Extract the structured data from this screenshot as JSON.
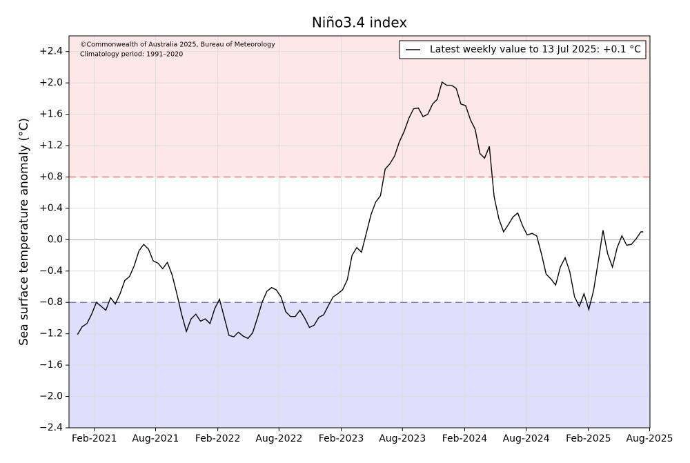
{
  "chart_data": {
    "type": "line",
    "title": "Niño3.4 index",
    "y_label": "Sea surface temperature anomaly (°C)",
    "annotations": [
      "©Commonwealth of Australia 2025, Bureau of Meteorology",
      "Climatology period: 1991–2020"
    ],
    "legend": "upper right",
    "grid": true,
    "thresholds": [
      {
        "value": 0.8,
        "color": "#e86060",
        "fill": "#fde7e7"
      },
      {
        "value": -0.8,
        "color": "#6666bb",
        "fill": "#dfdffb"
      }
    ],
    "ylim": [
      -2.4,
      2.6
    ],
    "yticks": [
      {
        "value": -2.4,
        "label": "−2.4"
      },
      {
        "value": -2.0,
        "label": "−2.0"
      },
      {
        "value": -1.6,
        "label": "−1.6"
      },
      {
        "value": -1.2,
        "label": "−1.2"
      },
      {
        "value": -0.8,
        "label": "−0.8"
      },
      {
        "value": -0.4,
        "label": "−0.4"
      },
      {
        "value": 0,
        "label": "0.0"
      },
      {
        "value": 0.4,
        "label": "+0.4"
      },
      {
        "value": 0.8,
        "label": "+0.8"
      },
      {
        "value": 1.2,
        "label": "+1.2"
      },
      {
        "value": 1.6,
        "label": "+1.6"
      },
      {
        "value": 2.0,
        "label": "+2.0"
      },
      {
        "value": 2.4,
        "label": "+2.4"
      }
    ],
    "xlim": [
      "2020-11-18",
      "2025-08-02"
    ],
    "xticks": [
      {
        "value": "2021-02-01",
        "label": "Feb-2021"
      },
      {
        "value": "2021-08-01",
        "label": "Aug-2021"
      },
      {
        "value": "2022-02-01",
        "label": "Feb-2022"
      },
      {
        "value": "2022-08-01",
        "label": "Aug-2022"
      },
      {
        "value": "2023-02-01",
        "label": "Feb-2023"
      },
      {
        "value": "2023-08-01",
        "label": "Aug-2023"
      },
      {
        "value": "2024-02-01",
        "label": "Feb-2024"
      },
      {
        "value": "2024-08-01",
        "label": "Aug-2024"
      },
      {
        "value": "2025-02-01",
        "label": "Feb-2025"
      },
      {
        "value": "2025-08-01",
        "label": "Aug-2025"
      }
    ],
    "x": [
      "2020-12-13",
      "2020-12-27",
      "2021-01-10",
      "2021-01-24",
      "2021-02-07",
      "2021-02-21",
      "2021-03-07",
      "2021-03-21",
      "2021-04-04",
      "2021-04-18",
      "2021-05-02",
      "2021-05-16",
      "2021-05-30",
      "2021-06-13",
      "2021-06-27",
      "2021-07-11",
      "2021-07-25",
      "2021-08-08",
      "2021-08-22",
      "2021-09-05",
      "2021-09-19",
      "2021-10-03",
      "2021-10-17",
      "2021-10-31",
      "2021-11-14",
      "2021-11-28",
      "2021-12-12",
      "2021-12-26",
      "2022-01-09",
      "2022-01-23",
      "2022-02-06",
      "2022-02-20",
      "2022-03-06",
      "2022-03-20",
      "2022-04-03",
      "2022-04-17",
      "2022-05-01",
      "2022-05-15",
      "2022-05-29",
      "2022-06-12",
      "2022-06-26",
      "2022-07-10",
      "2022-07-24",
      "2022-08-07",
      "2022-08-21",
      "2022-09-04",
      "2022-09-18",
      "2022-10-02",
      "2022-10-16",
      "2022-10-30",
      "2022-11-13",
      "2022-11-27",
      "2022-12-11",
      "2022-12-25",
      "2023-01-08",
      "2023-01-22",
      "2023-02-05",
      "2023-02-19",
      "2023-03-05",
      "2023-03-19",
      "2023-04-02",
      "2023-04-16",
      "2023-04-30",
      "2023-05-14",
      "2023-05-28",
      "2023-06-11",
      "2023-06-25",
      "2023-07-09",
      "2023-07-23",
      "2023-08-06",
      "2023-08-20",
      "2023-09-03",
      "2023-09-17",
      "2023-10-01",
      "2023-10-15",
      "2023-10-29",
      "2023-11-12",
      "2023-11-26",
      "2023-12-10",
      "2023-12-24",
      "2024-01-07",
      "2024-01-21",
      "2024-02-04",
      "2024-02-18",
      "2024-03-03",
      "2024-03-17",
      "2024-03-31",
      "2024-04-14",
      "2024-04-28",
      "2024-05-12",
      "2024-05-26",
      "2024-06-09",
      "2024-06-23",
      "2024-07-07",
      "2024-07-21",
      "2024-08-04",
      "2024-08-18",
      "2024-09-01",
      "2024-09-15",
      "2024-09-29",
      "2024-10-13",
      "2024-10-27",
      "2024-11-10",
      "2024-11-24",
      "2024-12-08",
      "2024-12-22",
      "2025-01-05",
      "2025-01-19",
      "2025-02-02",
      "2025-02-16",
      "2025-03-02",
      "2025-03-16",
      "2025-03-30",
      "2025-04-13",
      "2025-04-27",
      "2025-05-11",
      "2025-05-25",
      "2025-06-08",
      "2025-06-22",
      "2025-07-06",
      "2025-07-13"
    ],
    "series": [
      {
        "name": "Latest weekly value to 13 Jul 2025: +0.1 °C",
        "color": "#000000",
        "values": [
          -1.21,
          -1.11,
          -1.07,
          -0.95,
          -0.8,
          -0.85,
          -0.9,
          -0.74,
          -0.82,
          -0.69,
          -0.52,
          -0.47,
          -0.33,
          -0.14,
          -0.06,
          -0.12,
          -0.27,
          -0.3,
          -0.37,
          -0.29,
          -0.45,
          -0.69,
          -0.95,
          -1.17,
          -1.01,
          -0.95,
          -1.04,
          -1.01,
          -1.07,
          -0.88,
          -0.76,
          -0.99,
          -1.22,
          -1.24,
          -1.18,
          -1.23,
          -1.26,
          -1.19,
          -1.0,
          -0.8,
          -0.66,
          -0.61,
          -0.64,
          -0.73,
          -0.92,
          -0.98,
          -0.98,
          -0.9,
          -1.0,
          -1.12,
          -1.09,
          -0.99,
          -0.96,
          -0.84,
          -0.73,
          -0.69,
          -0.64,
          -0.51,
          -0.2,
          -0.1,
          -0.16,
          0.08,
          0.32,
          0.48,
          0.56,
          0.9,
          0.97,
          1.07,
          1.25,
          1.38,
          1.55,
          1.67,
          1.68,
          1.57,
          1.6,
          1.73,
          1.79,
          2.01,
          1.97,
          1.97,
          1.93,
          1.73,
          1.71,
          1.53,
          1.41,
          1.1,
          1.04,
          1.19,
          0.55,
          0.27,
          0.1,
          0.19,
          0.29,
          0.34,
          0.18,
          0.06,
          0.08,
          0.05,
          -0.18,
          -0.44,
          -0.5,
          -0.58,
          -0.35,
          -0.23,
          -0.41,
          -0.73,
          -0.85,
          -0.69,
          -0.89,
          -0.65,
          -0.28,
          0.12,
          -0.18,
          -0.35,
          -0.1,
          0.05,
          -0.07,
          -0.06,
          0.01,
          0.1,
          0.1
        ]
      }
    ]
  }
}
